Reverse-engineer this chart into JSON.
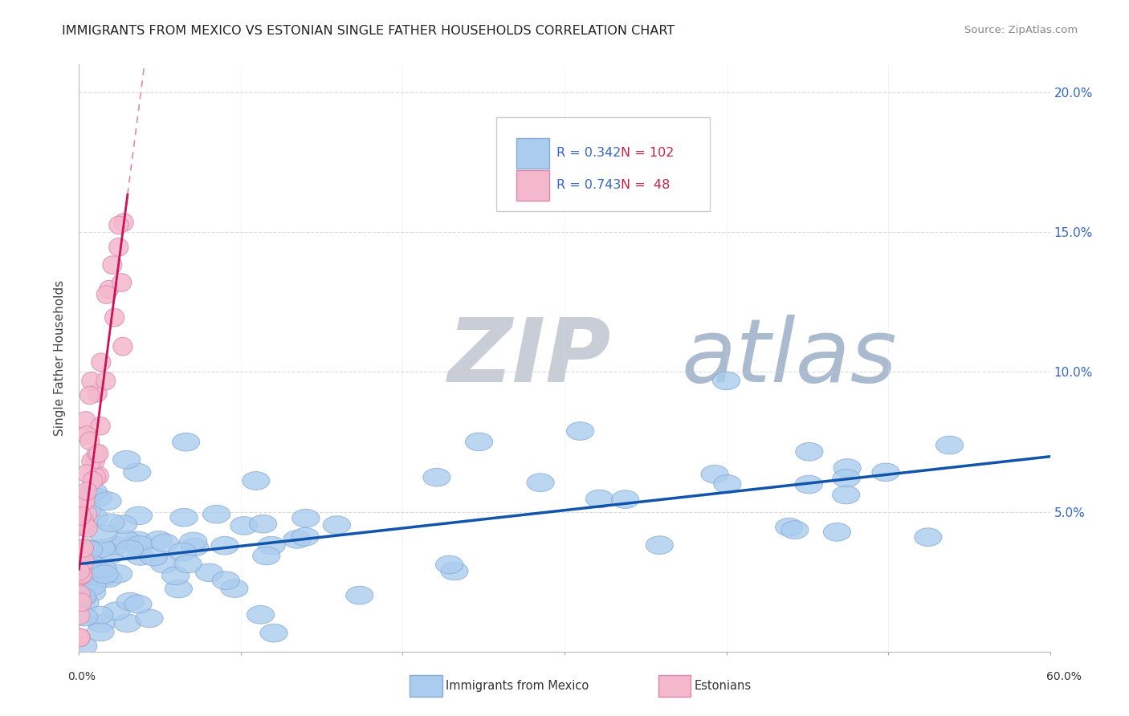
{
  "title": "IMMIGRANTS FROM MEXICO VS ESTONIAN SINGLE FATHER HOUSEHOLDS CORRELATION CHART",
  "source": "Source: ZipAtlas.com",
  "ylabel": "Single Father Households",
  "y_tick_vals": [
    0.0,
    0.05,
    0.1,
    0.15,
    0.2
  ],
  "y_tick_labels": [
    "",
    "5.0%",
    "10.0%",
    "15.0%",
    "20.0%"
  ],
  "legend_blue_r": "0.342",
  "legend_blue_n": "102",
  "legend_pink_r": "0.743",
  "legend_pink_n": "48",
  "blue_color": "#aaccee",
  "blue_edge": "#88aad4",
  "pink_color": "#f4b8cc",
  "pink_edge": "#d888a8",
  "trend_blue": "#1155aa",
  "trend_pink": "#cc1155",
  "watermark_zip_color": "#c8cdd8",
  "watermark_atlas_color": "#aabbd0",
  "background_color": "#ffffff",
  "xlim": [
    0.0,
    0.6
  ],
  "ylim": [
    0.0,
    0.21
  ],
  "legend_r_color": "#3366cc",
  "legend_n_color": "#cc2244"
}
